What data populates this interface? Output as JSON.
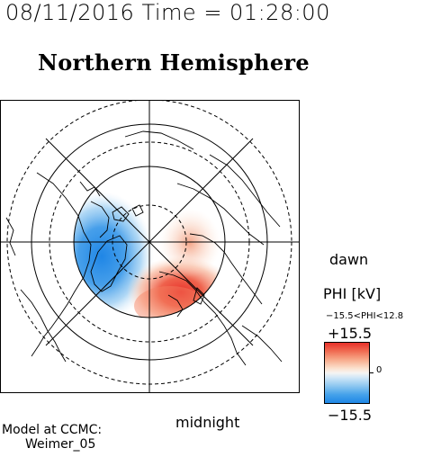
{
  "header": {
    "datetime": "08/11/2016 Time = 01:28:00",
    "title": "Northern Hemisphere"
  },
  "map": {
    "orientation_labels": {
      "dawn": "dawn",
      "midnight": "midnight"
    },
    "colors": {
      "positive": "#e8302a",
      "negative": "#1f86e6"
    }
  },
  "colorbar": {
    "title": "PHI [kV]",
    "range_text": "−15.5<PHI<12.8",
    "max_label": "+15.5",
    "zero_label": "0",
    "min_label": "−15.5"
  },
  "footer": {
    "model_line1": "Model at CCMC:",
    "model_line2": "Weimer_05"
  }
}
